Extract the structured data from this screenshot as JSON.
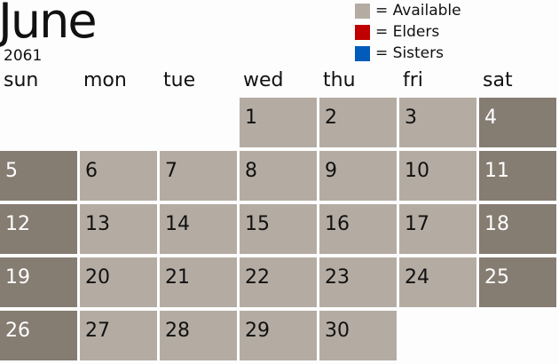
{
  "header": {
    "month": "June",
    "year": "2061"
  },
  "legend": [
    {
      "label": "= Available",
      "color": "#b4aca3"
    },
    {
      "label": "= Elders",
      "color": "#c00000"
    },
    {
      "label": "= Sisters",
      "color": "#005bbb"
    }
  ],
  "weekdays": [
    "sun",
    "mon",
    "tue",
    "wed",
    "thu",
    "fri",
    "sat"
  ],
  "colors": {
    "available": "#b4aca3",
    "weekend": "#857c72"
  },
  "days": [
    "1",
    "2",
    "3",
    "4",
    "5",
    "6",
    "7",
    "8",
    "9",
    "10",
    "11",
    "12",
    "13",
    "14",
    "15",
    "16",
    "17",
    "18",
    "19",
    "20",
    "21",
    "22",
    "23",
    "24",
    "25",
    "26",
    "27",
    "28",
    "29",
    "30"
  ],
  "first_weekday": 3
}
